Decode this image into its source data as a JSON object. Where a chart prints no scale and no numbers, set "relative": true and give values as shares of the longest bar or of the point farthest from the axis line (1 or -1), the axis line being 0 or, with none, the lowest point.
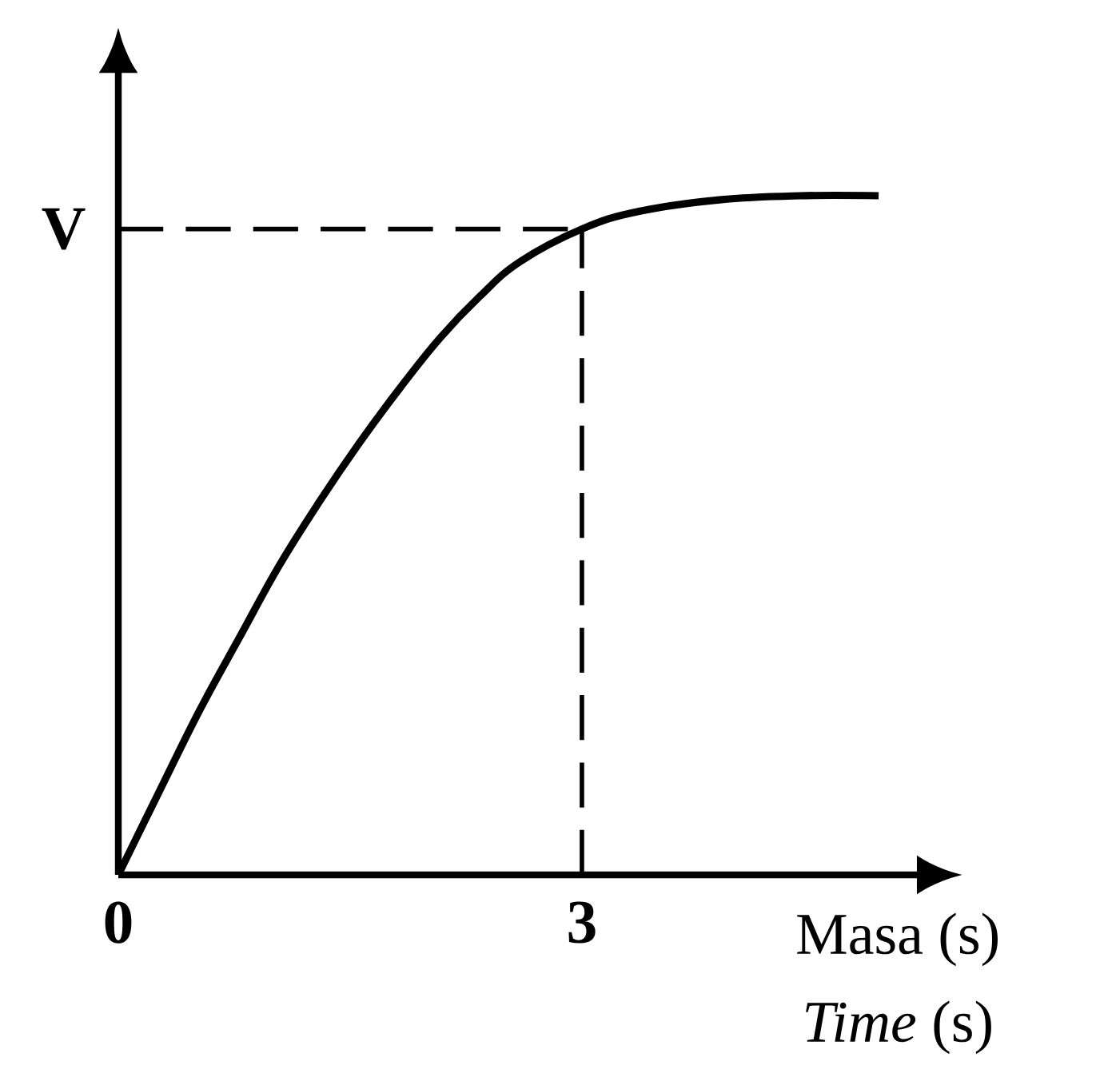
{
  "chart_data": {
    "type": "line",
    "relative": true,
    "xlabel": "Masa (s)",
    "annotations": [
      "*Time* (s)"
    ],
    "x": [
      0,
      0.27,
      0.53,
      0.79,
      1.04,
      1.3,
      1.56,
      1.82,
      2.08,
      2.34,
      2.6,
      3.0,
      3.37,
      3.89,
      4.41,
      4.92
    ],
    "series": [
      {
        "color": "#000000",
        "values": [
          0,
          0.125,
          0.244,
          0.352,
          0.455,
          0.549,
          0.636,
          0.716,
          0.79,
          0.852,
          0.903,
          0.951,
          0.977,
          0.994,
          1.0,
          1.0
        ]
      }
    ],
    "xlim": [
      0,
      5.2
    ],
    "xticks": [
      {
        "value": 0,
        "label": "0"
      },
      {
        "value": 3,
        "label": "3"
      }
    ],
    "ref_lines": [
      {
        "axis": "y",
        "value": 0.951,
        "label": "V",
        "line_style": "dashed"
      },
      {
        "axis": "x",
        "value": 3,
        "line_style": "dashed"
      }
    ],
    "grid": false,
    "marker": "none",
    "line_style": "solid"
  }
}
